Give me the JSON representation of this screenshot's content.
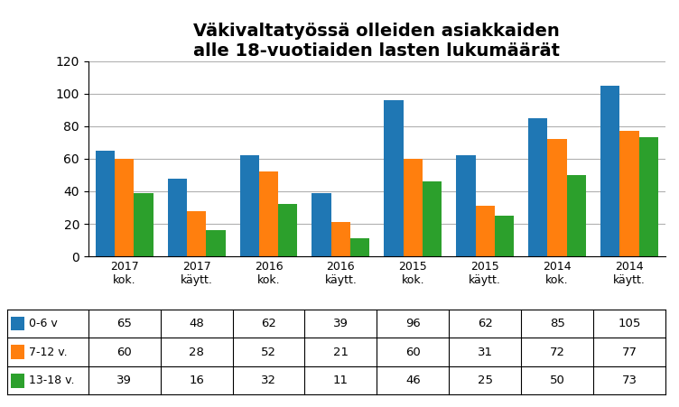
{
  "chart_data": {
    "type": "bar",
    "title": "Väkivaltatyössä olleiden asiakkaiden\nalle 18-vuotiaiden lasten lukumäärät",
    "categories": [
      "2017\nkok.",
      "2017\nkäytt.",
      "2016\nkok.",
      "2016\nkäytt.",
      "2015\nkok.",
      "2015\nkäytt.",
      "2014\nkok.",
      "2014\nkäytt."
    ],
    "series": [
      {
        "name": "0-6 v",
        "values": [
          65,
          48,
          62,
          39,
          96,
          62,
          85,
          105
        ]
      },
      {
        "name": "7-12 v.",
        "values": [
          60,
          28,
          52,
          21,
          60,
          31,
          72,
          77
        ]
      },
      {
        "name": "13-18 v.",
        "values": [
          39,
          16,
          32,
          11,
          46,
          25,
          50,
          73
        ]
      }
    ],
    "ylim": [
      0,
      120
    ],
    "yticks": [
      0,
      20,
      40,
      60,
      80,
      100,
      120
    ],
    "grid": true
  }
}
